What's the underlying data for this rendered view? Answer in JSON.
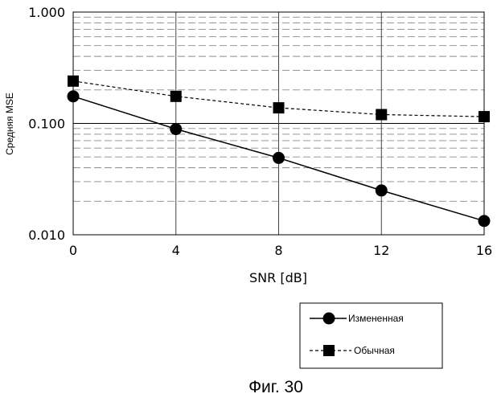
{
  "chart_data": {
    "type": "line",
    "title": "",
    "caption": "Фиг. 30",
    "xlabel": "SNR [dB]",
    "ylabel": "Средняя MSE",
    "x": [
      0,
      4,
      8,
      12,
      16
    ],
    "x_tick_labels": [
      "0",
      "4",
      "8",
      "12",
      "16"
    ],
    "xlim": [
      0,
      16
    ],
    "ylim": [
      0.01,
      1.0
    ],
    "y_scale": "log",
    "y_tick_labels": [
      "0.010",
      "0.100",
      "1.000"
    ],
    "y_tick_values": [
      0.01,
      0.1,
      1.0
    ],
    "grid": true,
    "legend_placement": "bottom-right",
    "series": [
      {
        "name": "Измененная",
        "values": [
          0.175,
          0.089,
          0.049,
          0.025,
          0.0133
        ],
        "marker": "circle",
        "line_style": "solid",
        "color": "#000000"
      },
      {
        "name": "Обычная",
        "values": [
          0.24,
          0.175,
          0.138,
          0.12,
          0.115
        ],
        "marker": "square",
        "line_style": "dashed",
        "color": "#000000"
      }
    ]
  }
}
